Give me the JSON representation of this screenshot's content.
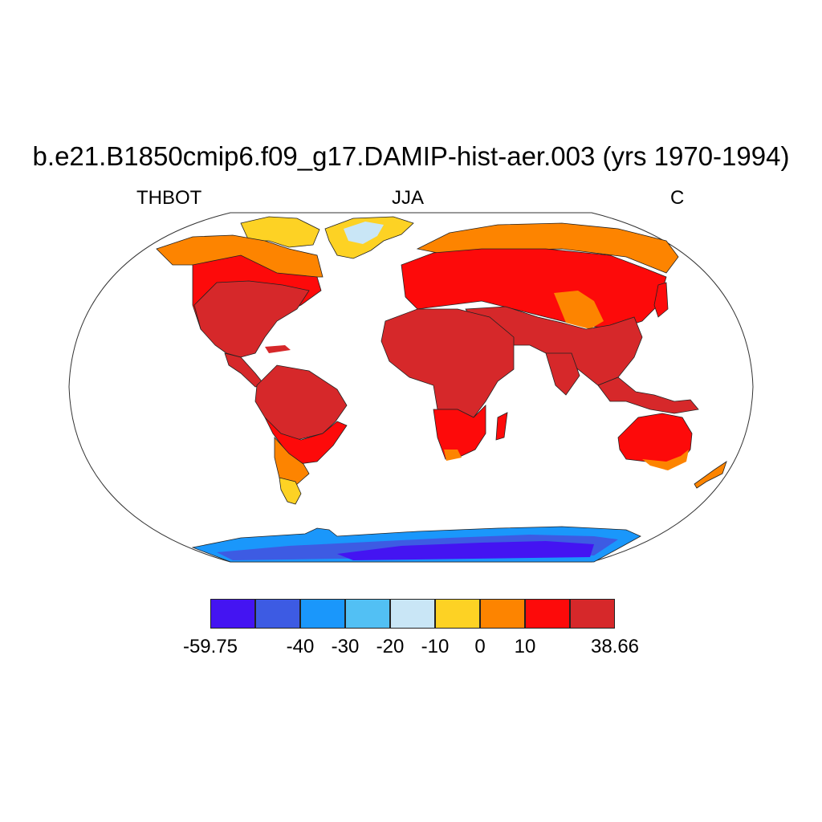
{
  "title": "b.e21.B1850cmip6.f09_g17.DAMIP-hist-aer.003 (yrs 1970-1994)",
  "left_label": "THBOT",
  "center_label": "JJA",
  "right_label": "C",
  "projection": "Robinson",
  "colorbar": {
    "colors": [
      "#4414f2",
      "#3d5be3",
      "#1a97fb",
      "#52c0f4",
      "#c9e6f6",
      "#fdd224",
      "#fd8400",
      "#fd0a0a",
      "#d6282a"
    ],
    "labels": [
      "-59.75",
      "-40",
      "-30",
      "-20",
      "-10",
      "0",
      "10",
      "38.66"
    ],
    "bounds": [
      -59.75,
      -50,
      -40,
      -30,
      -20,
      -10,
      0,
      10,
      20,
      38.66
    ]
  }
}
